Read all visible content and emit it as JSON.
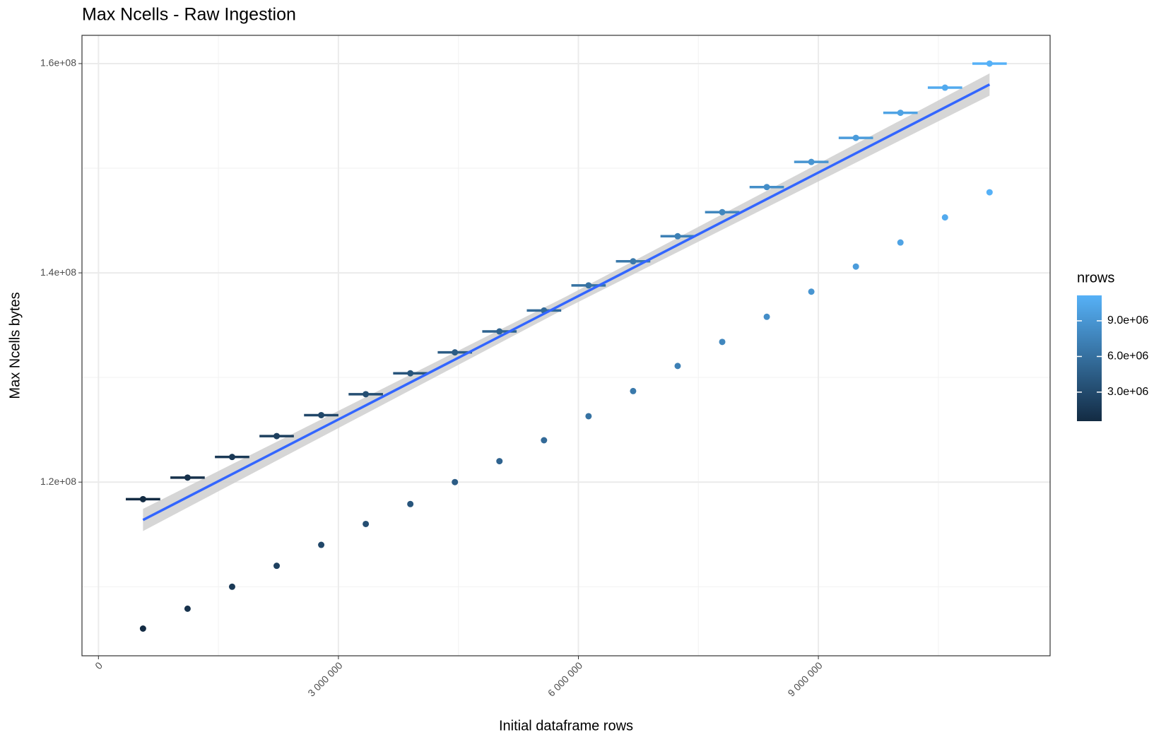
{
  "chart_data": {
    "type": "scatter",
    "title": "Max Ncells - Raw Ingestion",
    "x_label": "Initial dataframe rows",
    "y_label": "Max Ncells bytes",
    "x": [
      557000,
      1114000,
      1671000,
      2228000,
      2785000,
      3342000,
      3899000,
      4456000,
      5013000,
      5570000,
      6127000,
      6684000,
      7241000,
      7798000,
      8355000,
      8912000,
      9469000,
      10026000,
      10583000,
      11140000
    ],
    "series": [
      {
        "values": [
          118370000,
          120430000,
          122400000,
          124400000,
          126400000,
          128400000,
          130400000,
          132400000,
          134400000,
          136400000,
          138800000,
          141100000,
          143500000,
          145800000,
          148200000,
          150600000,
          152900000,
          155300000,
          157700000,
          160000000
        ],
        "x_error": [
          215000,
          215000,
          215000,
          215000,
          215000,
          215000,
          215000,
          215000,
          215000,
          215000,
          215000,
          215000,
          215000,
          215000,
          215000,
          215000,
          215000,
          215000,
          215000,
          215000
        ]
      },
      {
        "values": [
          106000000,
          107900000,
          110000000,
          112000000,
          114000000,
          116000000,
          117900000,
          120000000,
          122000000,
          124000000,
          126300000,
          128700000,
          131100000,
          133400000,
          135800000,
          138200000,
          140600000,
          142900000,
          145300000,
          147700000
        ]
      }
    ],
    "fit": {
      "color": "#3366ff",
      "band_color": "#cccccc",
      "x": [
        557000,
        5848500,
        11140000
      ],
      "y": [
        116380000,
        137190000,
        158000000
      ],
      "lower": [
        115320000,
        136640000,
        156940000
      ],
      "upper": [
        117440000,
        137740000,
        159060000
      ]
    },
    "color_scale": {
      "name": "nrows",
      "low": "#132B43",
      "high": "#56B1F7",
      "lim": [
        557000,
        11140000
      ],
      "ticks": [
        {
          "value": 3000000,
          "label": "3.0e+06"
        },
        {
          "value": 6000000,
          "label": "6.0e+06"
        },
        {
          "value": 9000000,
          "label": "9.0e+06"
        }
      ]
    },
    "xlim": [
      -206000,
      11897000
    ],
    "ylim": [
      103400000,
      162700000
    ],
    "xticks": [
      0,
      {
        "value": 3000000,
        "label": "3 000 000"
      },
      {
        "value": 6000000,
        "label": "6 000 000"
      },
      {
        "value": 9000000,
        "label": "9 000 000"
      }
    ],
    "yticks": [
      {
        "value": 120000000,
        "label": "1.2e+08"
      },
      {
        "value": 140000000,
        "label": "1.4e+08"
      },
      {
        "value": 160000000,
        "label": "1.6e+08"
      }
    ],
    "xminor": [
      1500000,
      4500000,
      7500000,
      10500000
    ],
    "yminor": [
      110000000,
      130000000,
      150000000
    ],
    "grid": true
  }
}
